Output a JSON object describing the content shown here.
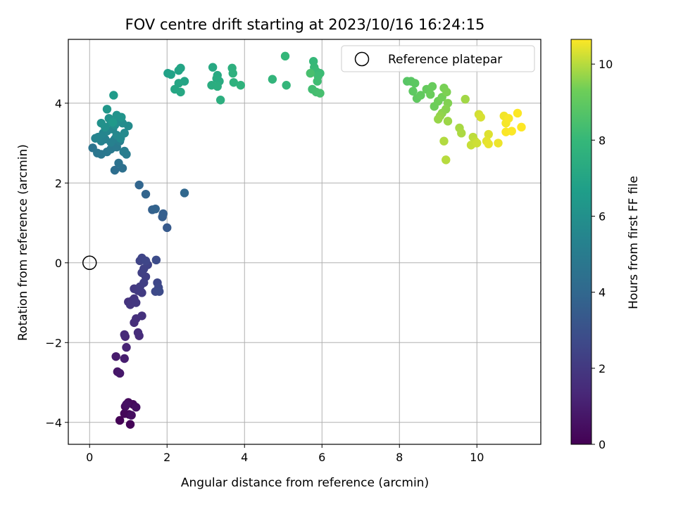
{
  "chart_data": {
    "type": "scatter",
    "title": "FOV centre drift starting at 2023/10/16 16:24:15",
    "xlabel": "Angular distance from reference (arcmin)",
    "ylabel": "Rotation from reference (arcmin)",
    "xlim": [
      -0.55,
      11.65
    ],
    "ylim": [
      -4.55,
      5.6
    ],
    "xticks": [
      0,
      2,
      4,
      6,
      8,
      10
    ],
    "xtick_labels": [
      "0",
      "2",
      "4",
      "6",
      "8",
      "10"
    ],
    "yticks": [
      -4,
      -2,
      0,
      2,
      4
    ],
    "ytick_labels": [
      "−4",
      "−2",
      "0",
      "2",
      "4"
    ],
    "grid": true,
    "legend": {
      "placement": "top-right",
      "entries": [
        "Reference platepar"
      ]
    },
    "reference_point": {
      "label": "Reference platepar",
      "x": 0,
      "y": 0
    },
    "colorbar": {
      "label": "Hours from first FF file",
      "range": [
        0,
        10.65
      ],
      "ticks": [
        0,
        2,
        4,
        6,
        8,
        10
      ],
      "tick_labels": [
        "0",
        "2",
        "4",
        "6",
        "8",
        "10"
      ],
      "colormap": "viridis"
    },
    "series": [
      {
        "columns": [
          "x",
          "y",
          "hours"
        ],
        "points": [
          [
            0.78,
            -3.95,
            0.05
          ],
          [
            1.05,
            -4.05,
            0.1
          ],
          [
            1.02,
            -3.8,
            0.15
          ],
          [
            0.9,
            -3.78,
            0.2
          ],
          [
            1.12,
            -3.55,
            0.25
          ],
          [
            1.0,
            -3.5,
            0.3
          ],
          [
            0.92,
            -3.6,
            0.35
          ],
          [
            1.08,
            -3.82,
            0.4
          ],
          [
            1.2,
            -3.62,
            0.45
          ],
          [
            0.95,
            -3.55,
            0.5
          ],
          [
            0.72,
            -2.73,
            0.7
          ],
          [
            0.78,
            -2.77,
            0.8
          ],
          [
            0.68,
            -2.35,
            0.9
          ],
          [
            0.9,
            -2.4,
            1.0
          ],
          [
            0.95,
            -2.12,
            1.2
          ],
          [
            0.92,
            -1.85,
            1.3
          ],
          [
            0.9,
            -1.8,
            1.4
          ],
          [
            1.28,
            -1.83,
            1.5
          ],
          [
            1.25,
            -1.75,
            1.55
          ],
          [
            1.15,
            -1.5,
            1.6
          ],
          [
            1.2,
            -1.4,
            1.65
          ],
          [
            1.35,
            -1.33,
            1.7
          ],
          [
            1.0,
            -0.98,
            1.75
          ],
          [
            1.1,
            -0.95,
            1.8
          ],
          [
            1.15,
            -0.9,
            1.85
          ],
          [
            1.05,
            -1.05,
            1.9
          ],
          [
            1.2,
            -1.0,
            1.95
          ],
          [
            1.15,
            -0.65,
            2.0
          ],
          [
            1.25,
            -0.7,
            2.05
          ],
          [
            1.35,
            -0.75,
            2.1
          ],
          [
            1.3,
            -0.6,
            2.15
          ],
          [
            1.4,
            -0.5,
            2.2
          ],
          [
            1.45,
            -0.35,
            2.25
          ],
          [
            1.35,
            -0.25,
            2.3
          ],
          [
            1.4,
            -0.15,
            2.35
          ],
          [
            1.5,
            -0.05,
            2.4
          ],
          [
            1.3,
            0.05,
            2.45
          ],
          [
            1.35,
            0.12,
            2.5
          ],
          [
            1.45,
            0.05,
            2.55
          ],
          [
            1.75,
            -0.5,
            2.6
          ],
          [
            1.78,
            -0.62,
            2.65
          ],
          [
            1.7,
            -0.72,
            2.7
          ],
          [
            1.8,
            -0.72,
            2.75
          ],
          [
            1.72,
            0.07,
            2.8
          ],
          [
            2.0,
            0.88,
            3.4
          ],
          [
            1.88,
            1.15,
            3.5
          ],
          [
            1.9,
            1.23,
            3.6
          ],
          [
            1.62,
            1.33,
            3.7
          ],
          [
            1.7,
            1.35,
            3.8
          ],
          [
            1.45,
            1.72,
            3.85
          ],
          [
            1.28,
            1.95,
            3.9
          ],
          [
            2.45,
            1.75,
            4.0
          ],
          [
            0.65,
            2.32,
            4.3
          ],
          [
            0.85,
            2.37,
            4.4
          ],
          [
            0.75,
            2.5,
            4.5
          ],
          [
            0.08,
            2.88,
            4.6
          ],
          [
            0.2,
            2.75,
            4.7
          ],
          [
            0.3,
            2.72,
            4.75
          ],
          [
            0.45,
            2.78,
            4.8
          ],
          [
            0.55,
            2.85,
            4.85
          ],
          [
            0.7,
            2.9,
            4.9
          ],
          [
            0.88,
            2.78,
            4.95
          ],
          [
            0.95,
            2.72,
            5.0
          ],
          [
            0.9,
            2.8,
            5.05
          ],
          [
            0.78,
            3.05,
            5.1
          ],
          [
            0.65,
            3.1,
            5.15
          ],
          [
            0.55,
            3.02,
            5.2
          ],
          [
            0.4,
            3.1,
            5.25
          ],
          [
            0.3,
            3.05,
            5.3
          ],
          [
            0.15,
            3.12,
            5.35
          ],
          [
            0.22,
            3.15,
            5.4
          ],
          [
            0.35,
            3.25,
            5.45
          ],
          [
            0.45,
            3.3,
            5.5
          ],
          [
            0.6,
            3.35,
            5.55
          ],
          [
            0.7,
            3.2,
            5.6
          ],
          [
            0.8,
            3.12,
            5.65
          ],
          [
            0.9,
            3.25,
            5.7
          ],
          [
            1.0,
            3.43,
            5.75
          ],
          [
            0.85,
            3.5,
            5.8
          ],
          [
            0.75,
            3.58,
            5.85
          ],
          [
            0.65,
            3.45,
            5.9
          ],
          [
            0.55,
            3.52,
            5.95
          ],
          [
            0.4,
            3.4,
            6.0
          ],
          [
            0.3,
            3.5,
            6.05
          ],
          [
            0.5,
            3.62,
            6.1
          ],
          [
            0.7,
            3.7,
            6.15
          ],
          [
            0.82,
            3.65,
            6.2
          ],
          [
            0.45,
            3.85,
            6.3
          ],
          [
            0.6,
            3.52,
            6.4
          ],
          [
            0.62,
            4.2,
            6.5
          ],
          [
            2.02,
            4.75,
            6.8
          ],
          [
            2.1,
            4.72,
            6.85
          ],
          [
            2.3,
            4.82,
            6.9
          ],
          [
            2.35,
            4.88,
            6.95
          ],
          [
            2.45,
            4.55,
            7.0
          ],
          [
            2.3,
            4.5,
            7.05
          ],
          [
            2.2,
            4.35,
            7.1
          ],
          [
            2.35,
            4.28,
            7.15
          ],
          [
            3.18,
            4.9,
            7.2
          ],
          [
            3.3,
            4.7,
            7.25
          ],
          [
            3.28,
            4.62,
            7.3
          ],
          [
            3.35,
            4.55,
            7.35
          ],
          [
            3.15,
            4.45,
            7.4
          ],
          [
            3.3,
            4.42,
            7.45
          ],
          [
            3.38,
            4.08,
            7.5
          ],
          [
            3.68,
            4.88,
            7.55
          ],
          [
            3.7,
            4.75,
            7.6
          ],
          [
            3.72,
            4.52,
            7.65
          ],
          [
            3.9,
            4.45,
            7.7
          ],
          [
            4.72,
            4.6,
            7.85
          ],
          [
            5.08,
            4.45,
            7.9
          ],
          [
            5.05,
            5.18,
            7.95
          ],
          [
            5.78,
            5.05,
            8.0
          ],
          [
            5.8,
            4.9,
            8.05
          ],
          [
            5.85,
            4.8,
            8.1
          ],
          [
            5.95,
            4.75,
            8.15
          ],
          [
            5.9,
            4.68,
            8.2
          ],
          [
            5.88,
            4.55,
            8.25
          ],
          [
            5.75,
            4.35,
            8.3
          ],
          [
            5.85,
            4.28,
            8.35
          ],
          [
            5.95,
            4.25,
            8.4
          ],
          [
            5.7,
            4.75,
            8.45
          ],
          [
            8.2,
            4.55,
            8.8
          ],
          [
            8.3,
            4.55,
            8.85
          ],
          [
            8.4,
            4.5,
            8.9
          ],
          [
            8.35,
            4.3,
            8.95
          ],
          [
            8.45,
            4.12,
            9.0
          ],
          [
            8.55,
            4.2,
            9.05
          ],
          [
            8.7,
            4.35,
            9.1
          ],
          [
            8.85,
            4.42,
            9.15
          ],
          [
            8.8,
            4.22,
            9.2
          ],
          [
            8.9,
            3.92,
            9.25
          ],
          [
            9.0,
            4.05,
            9.3
          ],
          [
            9.1,
            4.15,
            9.35
          ],
          [
            9.15,
            4.38,
            9.4
          ],
          [
            9.22,
            4.28,
            9.45
          ],
          [
            9.25,
            4.0,
            9.5
          ],
          [
            9.2,
            3.85,
            9.55
          ],
          [
            9.1,
            3.75,
            9.6
          ],
          [
            9.05,
            3.68,
            9.65
          ],
          [
            9.0,
            3.6,
            9.7
          ],
          [
            9.25,
            3.55,
            9.75
          ],
          [
            9.7,
            4.1,
            9.8
          ],
          [
            9.55,
            3.38,
            9.85
          ],
          [
            9.6,
            3.25,
            9.9
          ],
          [
            9.15,
            3.05,
            9.95
          ],
          [
            9.2,
            2.58,
            10.0
          ],
          [
            9.9,
            3.15,
            10.05
          ],
          [
            9.95,
            3.05,
            10.1
          ],
          [
            9.85,
            2.95,
            10.15
          ],
          [
            10.0,
            3.0,
            10.2
          ],
          [
            10.05,
            3.72,
            10.25
          ],
          [
            10.1,
            3.65,
            10.3
          ],
          [
            10.3,
            3.22,
            10.35
          ],
          [
            10.25,
            3.05,
            10.4
          ],
          [
            10.3,
            2.98,
            10.45
          ],
          [
            10.55,
            3.0,
            10.5
          ],
          [
            10.7,
            3.68,
            10.55
          ],
          [
            10.75,
            3.5,
            10.58
          ],
          [
            10.82,
            3.62,
            10.6
          ],
          [
            10.75,
            3.28,
            10.62
          ],
          [
            10.9,
            3.3,
            10.63
          ],
          [
            11.05,
            3.75,
            10.64
          ],
          [
            11.15,
            3.4,
            10.65
          ]
        ]
      }
    ]
  }
}
